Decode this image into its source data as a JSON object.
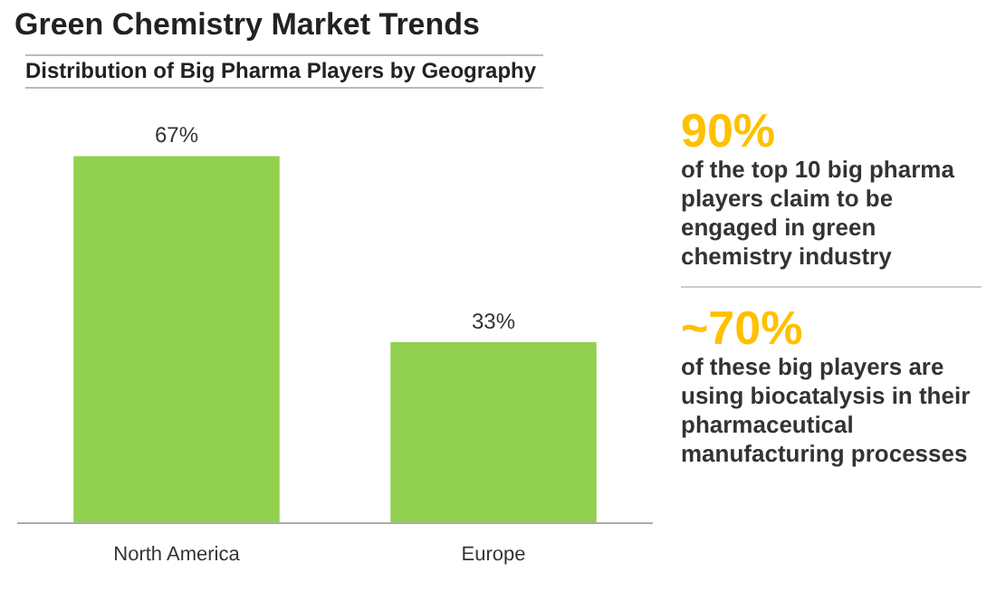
{
  "chart_data": {
    "type": "bar",
    "title": "Green Chemistry Market Trends",
    "subtitle": "Distribution of Big Pharma Players by Geography",
    "categories": [
      "North America",
      "Europe"
    ],
    "values": [
      67,
      33
    ],
    "value_labels": [
      "67%",
      "33%"
    ],
    "color": "#92d050",
    "annotations": [
      "90%",
      "of the top 10 big pharma players claim to be engaged in green chemistry industry",
      "~70%",
      "of these big players are using biocatalysis in their pharmaceutical manufacturing processes"
    ]
  }
}
